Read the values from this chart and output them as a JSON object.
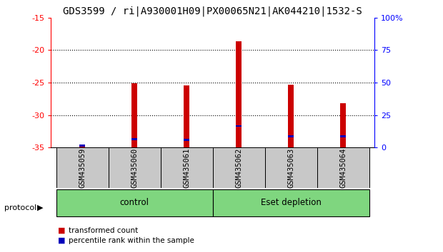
{
  "title": "GDS3599 / ri|A930001H09|PX00065N21|AK044210|1532-S",
  "samples": [
    "GSM435059",
    "GSM435060",
    "GSM435061",
    "GSM435062",
    "GSM435063",
    "GSM435064"
  ],
  "red_bar_tops": [
    -34.8,
    -25.1,
    -25.4,
    -18.6,
    -25.3,
    -28.2
  ],
  "red_bar_bottom": -35.0,
  "blue_bar_tops": [
    -34.55,
    -33.55,
    -33.65,
    -31.55,
    -33.15,
    -33.15
  ],
  "blue_bar_bottoms": [
    -34.85,
    -33.85,
    -33.95,
    -31.85,
    -33.45,
    -33.45
  ],
  "ylim": [
    -35,
    -15
  ],
  "yticks_left": [
    -35,
    -30,
    -25,
    -20,
    -15
  ],
  "yticks_right_positions": [
    -35,
    -30,
    -25,
    -20,
    -15
  ],
  "yticks_right_labels": [
    "0",
    "25",
    "50",
    "75",
    "100%"
  ],
  "groups": [
    {
      "label": "control",
      "start": 0,
      "end": 3
    },
    {
      "label": "Eset depletion",
      "start": 3,
      "end": 6
    }
  ],
  "protocol_label": "protocol",
  "legend_red_label": "transformed count",
  "legend_blue_label": "percentile rank within the sample",
  "bar_color_red": "#CC0000",
  "bar_color_blue": "#0000BB",
  "bg_color": "#C8C8C8",
  "plot_bg": "#FFFFFF",
  "group_color": "#7FD67F",
  "title_fontsize": 10,
  "tick_fontsize": 8,
  "bar_width": 0.12
}
